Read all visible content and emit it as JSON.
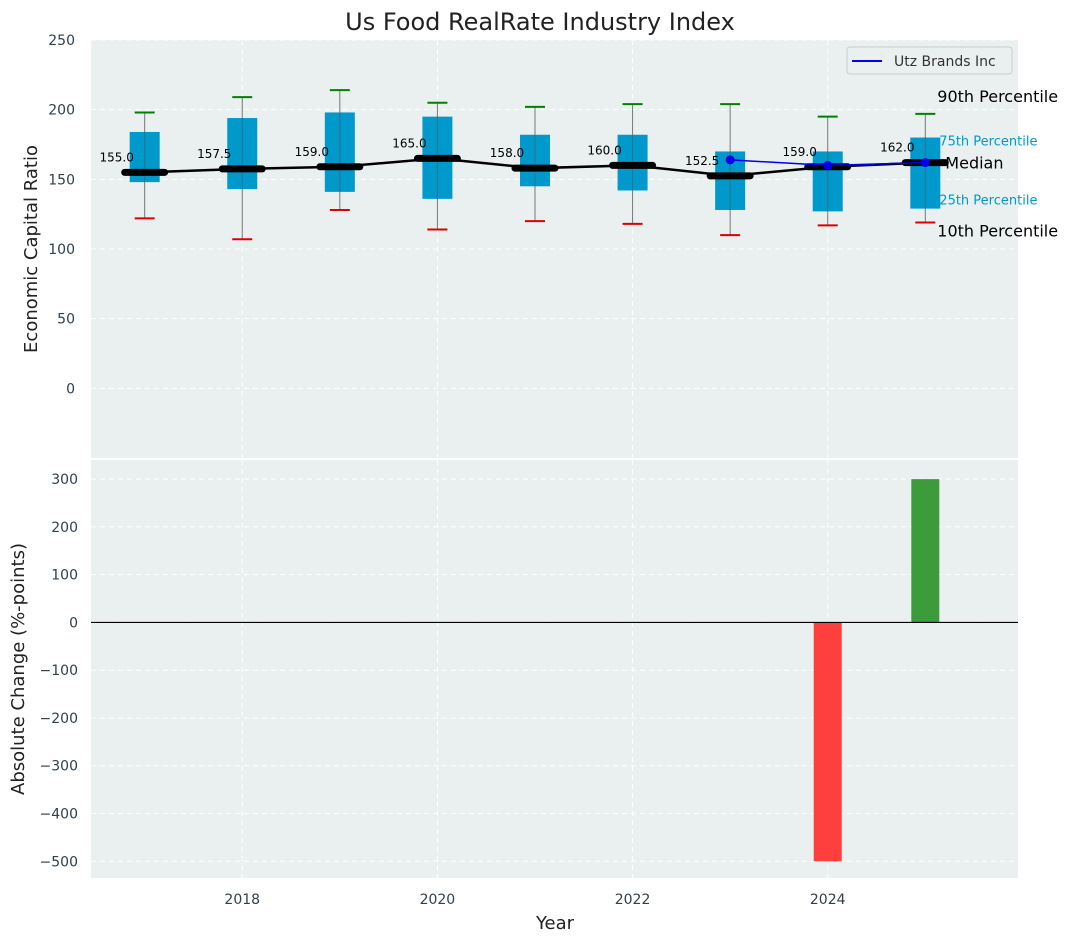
{
  "chart_data": [
    {
      "type": "box",
      "title": "Us Food RealRate Industry Index",
      "xlabel": "",
      "ylabel": "Economic Capital Ratio",
      "xlim": [
        2016.45,
        2025.95
      ],
      "ylim": [
        -50,
        250
      ],
      "y_ticks": [
        0,
        50,
        100,
        150,
        200,
        250
      ],
      "x_ticks": [
        2018,
        2020,
        2022,
        2024
      ],
      "grid": true,
      "legend_position": "top-right",
      "legend": [
        "Utz Brands Inc"
      ],
      "boxes": [
        {
          "x": 2017,
          "p10": 122,
          "q25": 148,
          "median": 155.0,
          "q75": 184,
          "p90": 198
        },
        {
          "x": 2018,
          "p10": 107,
          "q25": 143,
          "median": 157.5,
          "q75": 194,
          "p90": 209
        },
        {
          "x": 2019,
          "p10": 128,
          "q25": 141,
          "median": 159.0,
          "q75": 198,
          "p90": 214
        },
        {
          "x": 2020,
          "p10": 114,
          "q25": 136,
          "median": 165.0,
          "q75": 195,
          "p90": 205
        },
        {
          "x": 2021,
          "p10": 120,
          "q25": 145,
          "median": 158.0,
          "q75": 182,
          "p90": 202
        },
        {
          "x": 2022,
          "p10": 118,
          "q25": 142,
          "median": 160.0,
          "q75": 182,
          "p90": 204
        },
        {
          "x": 2023,
          "p10": 110,
          "q25": 128,
          "median": 152.5,
          "q75": 170,
          "p90": 204
        },
        {
          "x": 2024,
          "p10": 117,
          "q25": 127,
          "median": 159.0,
          "q75": 170,
          "p90": 195
        },
        {
          "x": 2025,
          "p10": 119,
          "q25": 129,
          "median": 162.0,
          "q75": 180,
          "p90": 197
        }
      ],
      "median_labels": [
        "155.0",
        "157.5",
        "159.0",
        "165.0",
        "158.0",
        "160.0",
        "152.5",
        "159.0",
        "162.0"
      ],
      "series": [
        {
          "name": "Utz Brands Inc",
          "x": [
            2023,
            2024,
            2025
          ],
          "values": [
            164,
            160,
            162
          ]
        }
      ],
      "annotations": {
        "p90": "90th Percentile",
        "q75": "75th Percentile",
        "median": "Median",
        "q25": "25th Percentile",
        "p10": "10th Percentile"
      }
    },
    {
      "type": "bar",
      "xlabel": "Year",
      "ylabel": "Absolute Change (%-points)",
      "xlim": [
        2016.45,
        2025.95
      ],
      "ylim": [
        -535,
        340
      ],
      "y_ticks": [
        -500,
        -400,
        -300,
        -200,
        -100,
        0,
        100,
        200,
        300
      ],
      "y_tick_labels": [
        "−500",
        "−400",
        "−300",
        "−200",
        "−100",
        "0",
        "100",
        "200",
        "300"
      ],
      "x_ticks": [
        2018,
        2020,
        2022,
        2024
      ],
      "grid": true,
      "bars": [
        {
          "x": 2024,
          "value": -500
        },
        {
          "x": 2025,
          "value": 300
        }
      ]
    }
  ],
  "colors": {
    "background": "#eaeff0",
    "box": "#0099cc",
    "median_line": "#000000",
    "company_line": "#0000ee",
    "whisker_top": "#008000",
    "whisker_bottom": "#dd0000",
    "bar_negative": "#ff3e3e",
    "bar_positive": "#3c9c3c",
    "tick_text": "#2f4050",
    "percentile_text_small": "#0099cc"
  }
}
